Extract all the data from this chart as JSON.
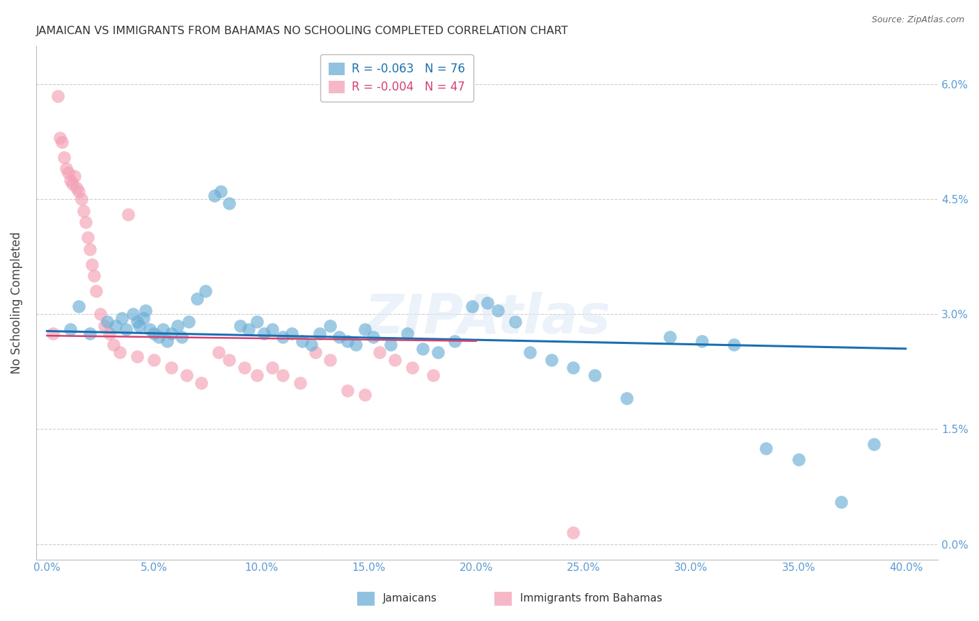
{
  "title": "JAMAICAN VS IMMIGRANTS FROM BAHAMAS NO SCHOOLING COMPLETED CORRELATION CHART",
  "source": "Source: ZipAtlas.com",
  "ylabel": "No Schooling Completed",
  "xlabel_vals": [
    0.0,
    5.0,
    10.0,
    15.0,
    20.0,
    25.0,
    30.0,
    35.0,
    40.0
  ],
  "ylabel_vals": [
    0.0,
    1.5,
    3.0,
    4.5,
    6.0
  ],
  "xlim": [
    -0.5,
    41.5
  ],
  "ylim": [
    -0.2,
    6.5
  ],
  "legend1_label": "Jamaicans",
  "legend2_label": "Immigrants from Bahamas",
  "blue_color": "#6baed6",
  "pink_color": "#f4a0b5",
  "blue_line_color": "#1a6faf",
  "pink_line_color": "#d44070",
  "watermark": "ZIPAtlas",
  "blue_dots_x": [
    1.1,
    1.5,
    2.0,
    2.8,
    3.2,
    3.5,
    3.7,
    4.0,
    4.2,
    4.3,
    4.5,
    4.6,
    4.8,
    5.0,
    5.2,
    5.4,
    5.6,
    5.8,
    6.1,
    6.3,
    6.6,
    7.0,
    7.4,
    7.8,
    8.1,
    8.5,
    9.0,
    9.4,
    9.8,
    10.1,
    10.5,
    11.0,
    11.4,
    11.9,
    12.3,
    12.7,
    13.2,
    13.6,
    14.0,
    14.4,
    14.8,
    15.2,
    16.0,
    16.8,
    17.5,
    18.2,
    19.0,
    19.8,
    20.5,
    21.0,
    21.8,
    22.5,
    23.5,
    24.5,
    25.5,
    27.0,
    29.0,
    30.5,
    32.0,
    33.5,
    35.0,
    37.0,
    38.5
  ],
  "blue_dots_y": [
    2.8,
    3.1,
    2.75,
    2.9,
    2.85,
    2.95,
    2.8,
    3.0,
    2.9,
    2.85,
    2.95,
    3.05,
    2.8,
    2.75,
    2.7,
    2.8,
    2.65,
    2.75,
    2.85,
    2.7,
    2.9,
    3.2,
    3.3,
    4.55,
    4.6,
    4.45,
    2.85,
    2.8,
    2.9,
    2.75,
    2.8,
    2.7,
    2.75,
    2.65,
    2.6,
    2.75,
    2.85,
    2.7,
    2.65,
    2.6,
    2.8,
    2.7,
    2.6,
    2.75,
    2.55,
    2.5,
    2.65,
    3.1,
    3.15,
    3.05,
    2.9,
    2.5,
    2.4,
    2.3,
    2.2,
    1.9,
    2.7,
    2.65,
    2.6,
    1.25,
    1.1,
    0.55,
    1.3
  ],
  "pink_dots_x": [
    0.3,
    0.5,
    0.6,
    0.7,
    0.8,
    0.9,
    1.0,
    1.1,
    1.2,
    1.3,
    1.4,
    1.5,
    1.6,
    1.7,
    1.8,
    1.9,
    2.0,
    2.1,
    2.2,
    2.3,
    2.5,
    2.7,
    2.9,
    3.1,
    3.4,
    3.8,
    4.2,
    5.0,
    5.8,
    6.5,
    7.2,
    8.0,
    8.5,
    9.2,
    9.8,
    10.5,
    11.0,
    11.8,
    12.5,
    13.2,
    14.0,
    14.8,
    15.5,
    16.2,
    17.0,
    18.0,
    24.5
  ],
  "pink_dots_y": [
    2.75,
    5.85,
    5.3,
    5.25,
    5.05,
    4.9,
    4.85,
    4.75,
    4.7,
    4.8,
    4.65,
    4.6,
    4.5,
    4.35,
    4.2,
    4.0,
    3.85,
    3.65,
    3.5,
    3.3,
    3.0,
    2.85,
    2.75,
    2.6,
    2.5,
    4.3,
    2.45,
    2.4,
    2.3,
    2.2,
    2.1,
    2.5,
    2.4,
    2.3,
    2.2,
    2.3,
    2.2,
    2.1,
    2.5,
    2.4,
    2.0,
    1.95,
    2.5,
    2.4,
    2.3,
    2.2,
    0.15
  ],
  "blue_trend_x": [
    0.0,
    40.0
  ],
  "blue_trend_y": [
    2.78,
    2.55
  ],
  "pink_trend_x": [
    0.0,
    20.0
  ],
  "pink_trend_y": [
    2.72,
    2.65
  ]
}
